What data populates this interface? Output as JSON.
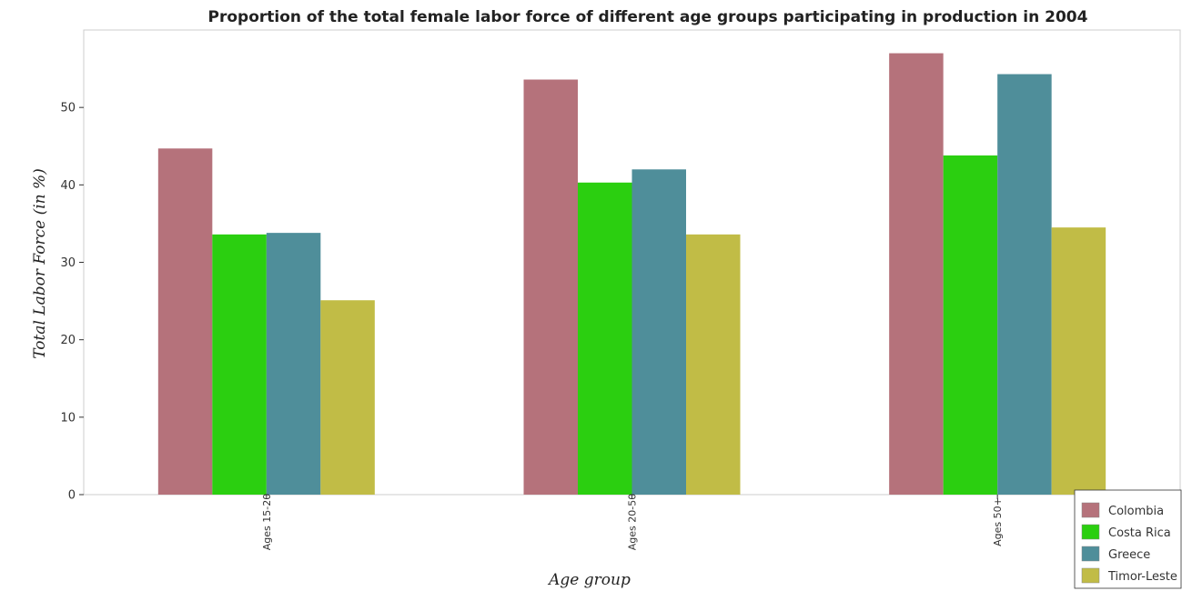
{
  "chart_data": {
    "type": "bar",
    "title": "Proportion of the total female labor force of different age groups participating in production in 2004",
    "xlabel": "Age group",
    "ylabel": "Total Labor Force (in %)",
    "categories": [
      "Ages 15-20",
      "Ages 20-50",
      "Ages 50+"
    ],
    "ylim": [
      0,
      60
    ],
    "yticks": [
      "0",
      "10",
      "20",
      "30",
      "40",
      "50"
    ],
    "grid": false,
    "legend_position": "bottom-right",
    "series": [
      {
        "name": "Colombia",
        "color": "#b5727b",
        "values": [
          44.7,
          53.6,
          57.0
        ]
      },
      {
        "name": "Costa Rica",
        "color": "#2bcf10",
        "values": [
          33.6,
          40.3,
          43.8
        ]
      },
      {
        "name": "Greece",
        "color": "#4f8e9a",
        "values": [
          33.8,
          42.0,
          54.3
        ]
      },
      {
        "name": "Timor-Leste",
        "color": "#c1bc46",
        "values": [
          25.1,
          33.6,
          34.5
        ]
      }
    ]
  }
}
